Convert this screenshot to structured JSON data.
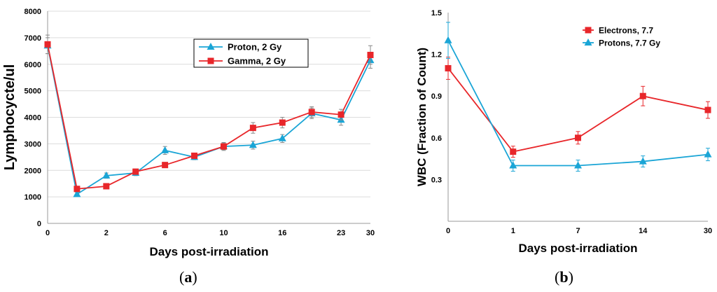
{
  "colors": {
    "series_red": "#e8262a",
    "series_cyan": "#1aa5d6",
    "grid": "#dcdcdc",
    "error_bar": "#888888"
  },
  "panels": [
    {
      "caption_open": "(",
      "caption_letter": "a",
      "caption_close": ")"
    },
    {
      "caption_open": "(",
      "caption_letter": "b",
      "caption_close": ")"
    }
  ],
  "chart_data": [
    {
      "type": "line",
      "title": "",
      "xlabel": "Days post-irradiation",
      "ylabel": "Lymphocycte/ul",
      "x_tick_labels": [
        "0",
        "",
        "2",
        "",
        "6",
        "",
        "10",
        "",
        "16",
        "",
        "23",
        "30"
      ],
      "y_ticks": [
        0,
        1000,
        2000,
        3000,
        4000,
        5000,
        6000,
        7000,
        8000
      ],
      "ylim": [
        0,
        8000
      ],
      "grid": "horizontal",
      "legend_position": "top-right",
      "series": [
        {
          "name": "Proton, 2 Gy",
          "color": "#1aa5d6",
          "marker": "triangle",
          "values": [
            6700,
            1100,
            1800,
            1900,
            2750,
            2500,
            2900,
            2950,
            3200,
            4150,
            3900,
            6150
          ],
          "errors": [
            300,
            80,
            100,
            100,
            150,
            100,
            150,
            150,
            150,
            200,
            200,
            300
          ]
        },
        {
          "name": "Gamma, 2 Gy",
          "color": "#e8262a",
          "marker": "square",
          "values": [
            6750,
            1300,
            1400,
            1950,
            2200,
            2550,
            2900,
            3600,
            3800,
            4200,
            4100,
            6350
          ],
          "errors": [
            350,
            60,
            60,
            100,
            100,
            100,
            120,
            200,
            200,
            200,
            200,
            350
          ]
        }
      ]
    },
    {
      "type": "line",
      "title": "",
      "xlabel": "Days post-irradiation",
      "ylabel": "WBC (Fraction of Count)",
      "x_tick_labels": [
        "0",
        "1",
        "7",
        "14",
        "30"
      ],
      "y_ticks": [
        0.3,
        0.6,
        0.9,
        1.2,
        1.5
      ],
      "y_tick_labels": [
        "0.3",
        "0.6",
        "0.9",
        "1.2",
        "1.5"
      ],
      "ylim": [
        0,
        1.5
      ],
      "grid": "none",
      "legend_position": "top-right",
      "series": [
        {
          "name": "Electrons, 7.7",
          "color": "#e8262a",
          "marker": "square",
          "values": [
            1.1,
            0.5,
            0.6,
            0.9,
            0.8
          ],
          "errors": [
            0.08,
            0.04,
            0.045,
            0.07,
            0.06
          ]
        },
        {
          "name": "Protons, 7.7 Gy",
          "color": "#1aa5d6",
          "marker": "triangle",
          "values": [
            1.3,
            0.4,
            0.4,
            0.43,
            0.48
          ],
          "errors": [
            0.13,
            0.04,
            0.04,
            0.04,
            0.045
          ]
        }
      ]
    }
  ]
}
